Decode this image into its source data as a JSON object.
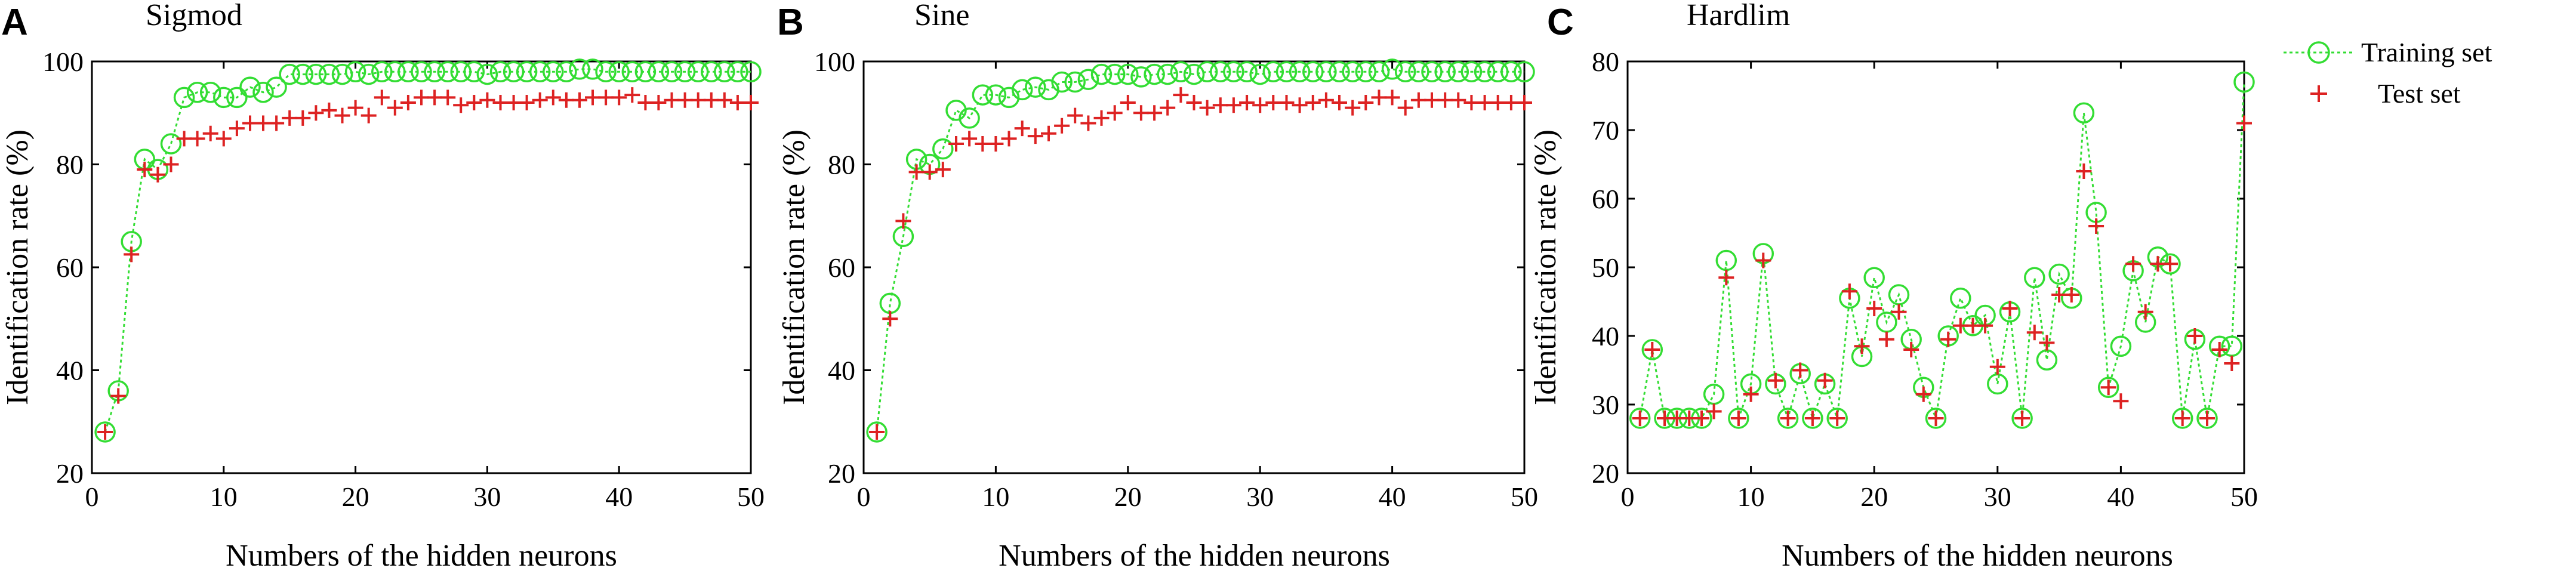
{
  "colors": {
    "training": "#33dd33",
    "test": "#dd2222",
    "axis": "#000000"
  },
  "legend": {
    "items": [
      "Training set",
      "Test set"
    ],
    "position": "top-right"
  },
  "chart_data": [
    {
      "panel": "A",
      "title": "Sigmod",
      "type": "line",
      "xlabel": "Numbers of the hidden neurons",
      "ylabel": "Identification rate (%)",
      "xlim": [
        0,
        50
      ],
      "ylim": [
        20,
        100
      ],
      "xticks": [
        0,
        10,
        20,
        30,
        40,
        50
      ],
      "yticks": [
        20,
        40,
        60,
        80,
        100
      ],
      "x": [
        1,
        2,
        3,
        4,
        5,
        6,
        7,
        8,
        9,
        10,
        11,
        12,
        13,
        14,
        15,
        16,
        17,
        18,
        19,
        20,
        21,
        22,
        23,
        24,
        25,
        26,
        27,
        28,
        29,
        30,
        31,
        32,
        33,
        34,
        35,
        36,
        37,
        38,
        39,
        40,
        41,
        42,
        43,
        44,
        45,
        46,
        47,
        48,
        49,
        50
      ],
      "series": [
        {
          "name": "Training set",
          "marker": "circle",
          "values": [
            28,
            36,
            65,
            81,
            79,
            84,
            93,
            94,
            94,
            93,
            93,
            95,
            94,
            95,
            97.5,
            97.5,
            97.5,
            97.5,
            97.5,
            98,
            97.5,
            98,
            98,
            98,
            98,
            98,
            98,
            98,
            98,
            97.5,
            98,
            98,
            98,
            98,
            98,
            98,
            98.5,
            98.5,
            98,
            98,
            98,
            98,
            98,
            98,
            98,
            98,
            98,
            98,
            98,
            98
          ]
        },
        {
          "name": "Test set",
          "marker": "plus",
          "values": [
            28,
            35,
            62.5,
            79,
            78,
            80,
            85,
            85,
            86,
            85,
            87,
            88,
            88,
            88,
            89,
            89,
            90,
            90.5,
            89.5,
            91,
            89.5,
            93,
            91,
            92,
            93,
            93,
            93,
            91.5,
            92,
            92.5,
            92,
            92,
            92,
            92.5,
            93,
            92.5,
            92.5,
            93,
            93,
            93,
            93.5,
            92,
            92,
            92.5,
            92.5,
            92.5,
            92.5,
            92.5,
            92,
            92
          ]
        }
      ]
    },
    {
      "panel": "B",
      "title": "Sine",
      "type": "line",
      "xlabel": "Numbers of the hidden neurons",
      "ylabel": "Identification rate (%)",
      "xlim": [
        0,
        50
      ],
      "ylim": [
        20,
        100
      ],
      "xticks": [
        0,
        10,
        20,
        30,
        40,
        50
      ],
      "yticks": [
        20,
        40,
        60,
        80,
        100
      ],
      "x": [
        1,
        2,
        3,
        4,
        5,
        6,
        7,
        8,
        9,
        10,
        11,
        12,
        13,
        14,
        15,
        16,
        17,
        18,
        19,
        20,
        21,
        22,
        23,
        24,
        25,
        26,
        27,
        28,
        29,
        30,
        31,
        32,
        33,
        34,
        35,
        36,
        37,
        38,
        39,
        40,
        41,
        42,
        43,
        44,
        45,
        46,
        47,
        48,
        49,
        50
      ],
      "series": [
        {
          "name": "Training set",
          "marker": "circle",
          "values": [
            28,
            53,
            66,
            81,
            80,
            83,
            90.5,
            89,
            93.5,
            93.5,
            93,
            94.5,
            95,
            94.5,
            96,
            96,
            96.5,
            97.5,
            97.5,
            97.5,
            97,
            97.5,
            97.5,
            98,
            97.5,
            98,
            98,
            98,
            98,
            97.5,
            98,
            98,
            98,
            98,
            98,
            98,
            98,
            98,
            98,
            98.5,
            98,
            98,
            98,
            98,
            98,
            98,
            98,
            98,
            98,
            98
          ]
        },
        {
          "name": "Test set",
          "marker": "plus",
          "values": [
            28,
            50,
            69,
            78.5,
            78.5,
            79,
            84,
            85,
            84,
            84,
            85,
            87,
            85.5,
            86,
            87.5,
            89.5,
            88,
            89,
            90,
            92,
            90,
            90,
            91,
            93.5,
            92,
            91,
            91.5,
            91.5,
            92,
            91.5,
            92,
            92,
            91.5,
            92,
            92.5,
            92,
            91,
            92,
            93,
            93,
            91,
            92.5,
            92.5,
            92.5,
            92.5,
            92,
            92,
            92,
            92,
            92
          ]
        }
      ]
    },
    {
      "panel": "C",
      "title": "Hardlim",
      "type": "line",
      "xlabel": "Numbers of the hidden neurons",
      "ylabel": "Identification rate (%)",
      "xlim": [
        0,
        50
      ],
      "ylim": [
        20,
        80
      ],
      "xticks": [
        0,
        10,
        20,
        30,
        40,
        50
      ],
      "yticks": [
        20,
        30,
        40,
        50,
        60,
        70,
        80
      ],
      "legend": [
        "Training set",
        "Test set"
      ],
      "x": [
        1,
        2,
        3,
        4,
        5,
        6,
        7,
        8,
        9,
        10,
        11,
        12,
        13,
        14,
        15,
        16,
        17,
        18,
        19,
        20,
        21,
        22,
        23,
        24,
        25,
        26,
        27,
        28,
        29,
        30,
        31,
        32,
        33,
        34,
        35,
        36,
        37,
        38,
        39,
        40,
        41,
        42,
        43,
        44,
        45,
        46,
        47,
        48,
        49,
        50
      ],
      "series": [
        {
          "name": "Training set",
          "marker": "circle",
          "values": [
            28,
            38,
            28,
            28,
            28,
            28,
            31.5,
            51,
            28,
            33,
            52,
            33,
            28,
            34.5,
            28,
            33,
            28,
            45.5,
            37,
            48.5,
            42,
            46,
            39.5,
            32.5,
            28,
            40,
            45.5,
            41.5,
            43,
            33,
            43.5,
            28,
            48.5,
            36.5,
            49,
            45.5,
            72.5,
            58,
            32.5,
            38.5,
            49.5,
            42,
            51.5,
            50.5,
            28,
            39.5,
            28,
            38.5,
            38.5,
            77
          ]
        },
        {
          "name": "Test set",
          "marker": "plus",
          "values": [
            28,
            38,
            28,
            28,
            28,
            28,
            29,
            48.5,
            28,
            31.5,
            51,
            33.5,
            28,
            35,
            28,
            33.5,
            28,
            46.5,
            38.5,
            44,
            39.5,
            43.5,
            38,
            31.5,
            28,
            39.5,
            41.5,
            41.5,
            41.5,
            35.5,
            44,
            28,
            40.5,
            39,
            46,
            46,
            64,
            56,
            32.5,
            30.5,
            50.5,
            43.5,
            50.5,
            50.5,
            28,
            40,
            28,
            38,
            36,
            71
          ]
        }
      ]
    }
  ]
}
